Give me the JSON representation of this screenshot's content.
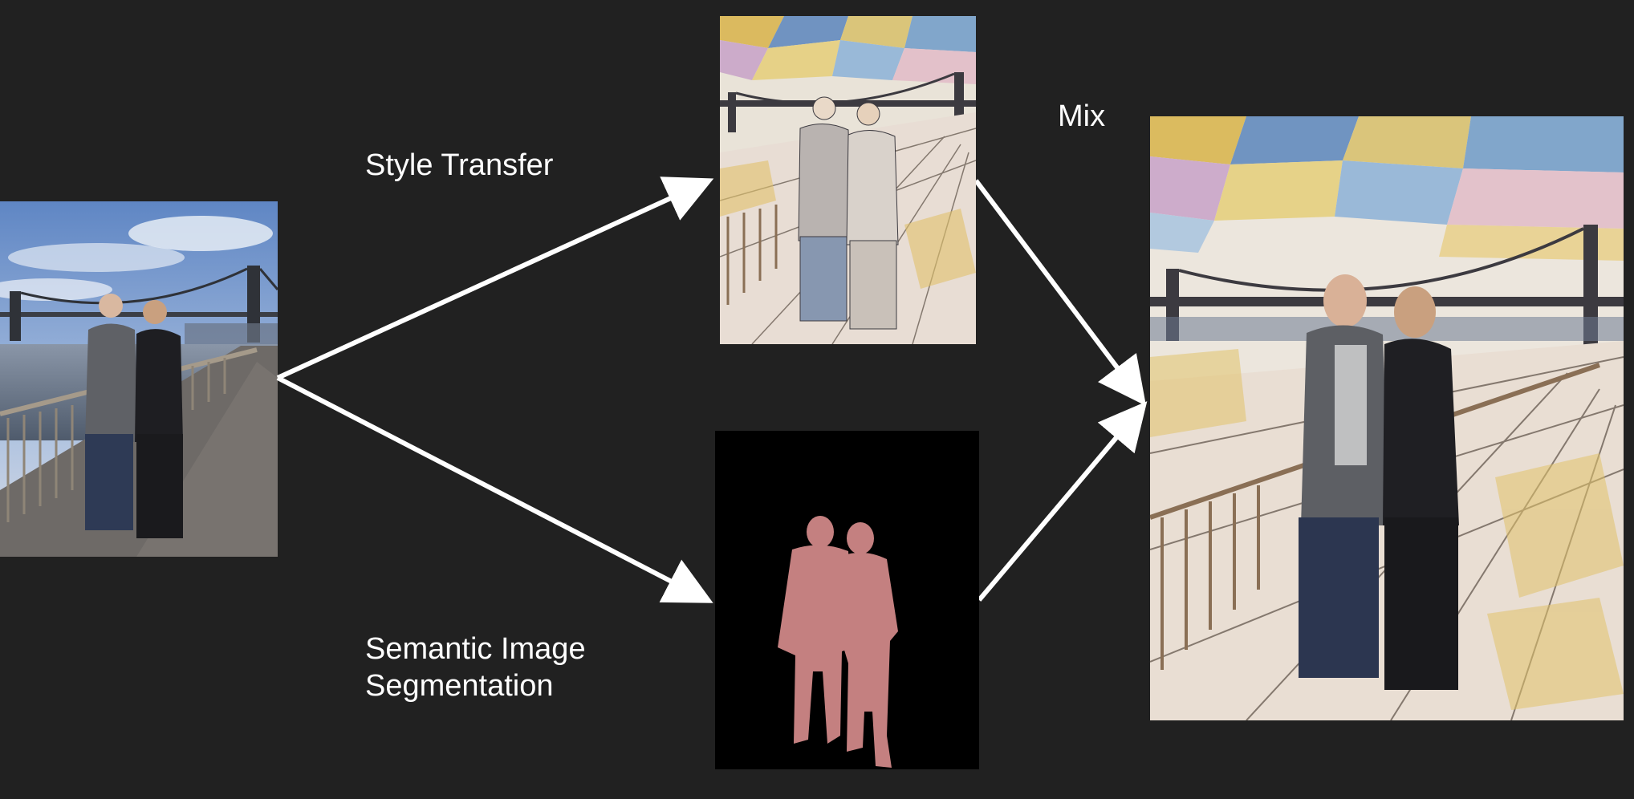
{
  "labels": {
    "style_transfer": "Style Transfer",
    "segmentation_line1": "Semantic Image",
    "segmentation_line2": "Segmentation",
    "mix": "Mix"
  },
  "colors": {
    "background": "#212121",
    "arrow": "#ffffff",
    "text": "#ffffff",
    "segmentation_bg": "#000000",
    "segmentation_mask": "#c48080"
  },
  "images": {
    "original_photo": "photo-two-people-bridge",
    "stylized_photo": "stylized-mosaic-two-people-bridge",
    "segmentation_mask": "person-silhouette-mask",
    "mixed_result": "mixed-stylized-background-real-people"
  }
}
